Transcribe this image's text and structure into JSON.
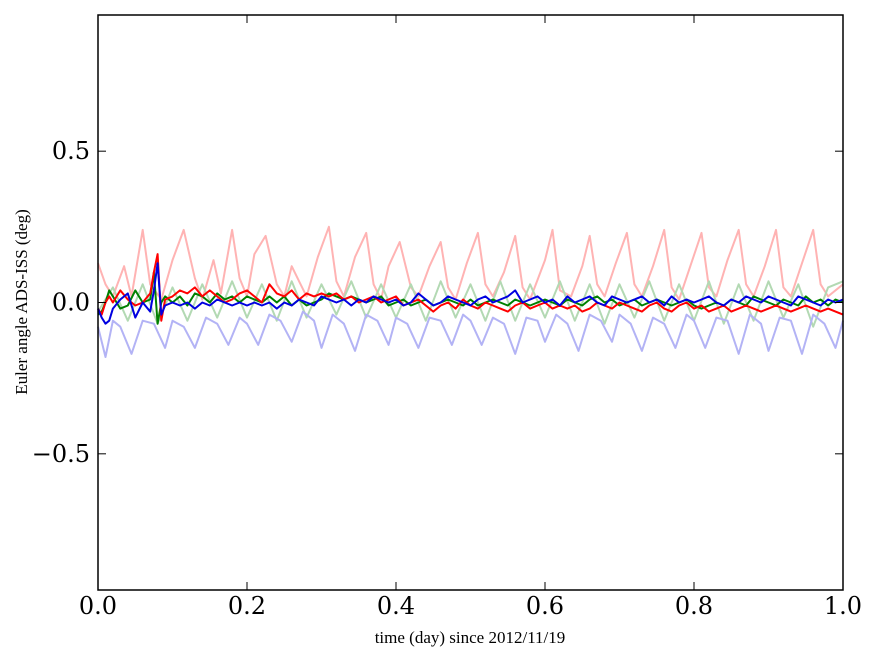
{
  "chart_data": {
    "type": "line",
    "title": "",
    "xlabel": "time (day) since 2012/11/19",
    "ylabel": "Euler angle ADS-ISS (deg)",
    "xlim": [
      0.0,
      1.0
    ],
    "ylim": [
      -0.95,
      0.95
    ],
    "xticks": [
      0.0,
      0.2,
      0.4,
      0.6,
      0.8,
      1.0
    ],
    "xtick_labels": [
      "0.0",
      "0.2",
      "0.4",
      "0.6",
      "0.8",
      "1.0"
    ],
    "yticks": [
      0.5,
      0.0,
      -0.5
    ],
    "ytick_labels": [
      "0.5",
      "0.0",
      "−0.5"
    ],
    "grid": false,
    "legend": "none",
    "series": [
      {
        "color": "#ffb3b3",
        "x": [
          0.0,
          0.01,
          0.02,
          0.035,
          0.045,
          0.06,
          0.07,
          0.085,
          0.1,
          0.115,
          0.13,
          0.14,
          0.155,
          0.165,
          0.18,
          0.19,
          0.2,
          0.21,
          0.225,
          0.24,
          0.25,
          0.26,
          0.27,
          0.28,
          0.295,
          0.31,
          0.32,
          0.33,
          0.345,
          0.36,
          0.37,
          0.38,
          0.39,
          0.405,
          0.42,
          0.43,
          0.445,
          0.46,
          0.47,
          0.48,
          0.495,
          0.51,
          0.52,
          0.53,
          0.545,
          0.56,
          0.57,
          0.58,
          0.6,
          0.61,
          0.62,
          0.635,
          0.65,
          0.66,
          0.67,
          0.68,
          0.695,
          0.71,
          0.72,
          0.73,
          0.745,
          0.76,
          0.77,
          0.78,
          0.795,
          0.81,
          0.82,
          0.83,
          0.845,
          0.86,
          0.87,
          0.88,
          0.895,
          0.91,
          0.92,
          0.93,
          0.945,
          0.96,
          0.97,
          0.98,
          1.0
        ],
        "y": [
          0.13,
          0.06,
          0.02,
          0.12,
          0.02,
          0.24,
          0.06,
          0.01,
          0.14,
          0.24,
          0.08,
          0.01,
          0.14,
          0.03,
          0.24,
          0.08,
          0.02,
          0.16,
          0.22,
          0.06,
          0.02,
          0.12,
          0.07,
          0.02,
          0.15,
          0.25,
          0.07,
          0.02,
          0.15,
          0.23,
          0.06,
          0.01,
          0.12,
          0.2,
          0.05,
          0.02,
          0.12,
          0.2,
          0.05,
          0.01,
          0.13,
          0.23,
          0.06,
          0.02,
          0.1,
          0.22,
          0.05,
          0.01,
          0.14,
          0.24,
          0.04,
          0.02,
          0.12,
          0.22,
          0.06,
          0.02,
          0.13,
          0.23,
          0.06,
          0.02,
          0.12,
          0.24,
          0.05,
          0.01,
          0.12,
          0.23,
          0.05,
          0.02,
          0.14,
          0.24,
          0.06,
          0.02,
          0.12,
          0.24,
          0.05,
          0.02,
          0.13,
          0.24,
          0.06,
          0.02,
          0.06
        ]
      },
      {
        "color": "#b3d9b3",
        "x": [
          0.0,
          0.02,
          0.04,
          0.06,
          0.08,
          0.1,
          0.12,
          0.14,
          0.16,
          0.18,
          0.2,
          0.22,
          0.24,
          0.26,
          0.28,
          0.3,
          0.32,
          0.34,
          0.36,
          0.38,
          0.4,
          0.42,
          0.44,
          0.46,
          0.48,
          0.5,
          0.52,
          0.54,
          0.56,
          0.58,
          0.6,
          0.62,
          0.64,
          0.66,
          0.68,
          0.7,
          0.72,
          0.74,
          0.76,
          0.78,
          0.8,
          0.82,
          0.84,
          0.86,
          0.88,
          0.9,
          0.92,
          0.94,
          0.96,
          0.98,
          1.0
        ],
        "y": [
          -0.03,
          0.05,
          -0.06,
          0.06,
          -0.07,
          0.05,
          -0.06,
          0.06,
          -0.05,
          0.07,
          -0.05,
          0.06,
          -0.06,
          0.07,
          -0.05,
          0.06,
          -0.04,
          0.07,
          -0.05,
          0.06,
          -0.05,
          0.06,
          -0.06,
          0.07,
          -0.05,
          0.06,
          -0.06,
          0.07,
          -0.06,
          0.06,
          -0.05,
          0.07,
          -0.06,
          0.06,
          -0.07,
          0.06,
          -0.05,
          0.07,
          -0.06,
          0.06,
          -0.06,
          0.07,
          -0.07,
          0.06,
          -0.06,
          0.07,
          -0.05,
          0.06,
          -0.08,
          0.05,
          0.07
        ]
      },
      {
        "color": "#b3b3f5",
        "x": [
          0.0,
          0.01,
          0.02,
          0.03,
          0.045,
          0.06,
          0.075,
          0.09,
          0.1,
          0.115,
          0.13,
          0.145,
          0.16,
          0.175,
          0.19,
          0.2,
          0.215,
          0.23,
          0.245,
          0.26,
          0.275,
          0.29,
          0.3,
          0.315,
          0.33,
          0.345,
          0.36,
          0.375,
          0.39,
          0.4,
          0.415,
          0.43,
          0.445,
          0.46,
          0.475,
          0.49,
          0.5,
          0.515,
          0.53,
          0.545,
          0.56,
          0.575,
          0.59,
          0.6,
          0.615,
          0.63,
          0.645,
          0.66,
          0.675,
          0.69,
          0.7,
          0.715,
          0.73,
          0.745,
          0.76,
          0.775,
          0.79,
          0.8,
          0.815,
          0.83,
          0.845,
          0.86,
          0.875,
          0.89,
          0.9,
          0.915,
          0.93,
          0.945,
          0.96,
          0.975,
          0.99,
          1.0
        ],
        "y": [
          -0.08,
          -0.18,
          -0.06,
          -0.08,
          -0.17,
          -0.06,
          -0.07,
          -0.15,
          -0.06,
          -0.08,
          -0.15,
          -0.05,
          -0.07,
          -0.14,
          -0.05,
          -0.07,
          -0.14,
          -0.04,
          -0.06,
          -0.13,
          -0.03,
          -0.06,
          -0.15,
          -0.04,
          -0.07,
          -0.16,
          -0.04,
          -0.06,
          -0.14,
          -0.05,
          -0.07,
          -0.15,
          -0.05,
          -0.06,
          -0.14,
          -0.04,
          -0.06,
          -0.14,
          -0.05,
          -0.07,
          -0.17,
          -0.05,
          -0.06,
          -0.13,
          -0.04,
          -0.07,
          -0.16,
          -0.04,
          -0.06,
          -0.13,
          -0.04,
          -0.07,
          -0.16,
          -0.05,
          -0.07,
          -0.15,
          -0.04,
          -0.06,
          -0.15,
          -0.05,
          -0.06,
          -0.17,
          -0.04,
          -0.07,
          -0.16,
          -0.05,
          -0.06,
          -0.17,
          -0.04,
          -0.07,
          -0.15,
          -0.06
        ]
      },
      {
        "color": "#008000",
        "x": [
          0.0,
          0.005,
          0.01,
          0.015,
          0.02,
          0.03,
          0.04,
          0.05,
          0.06,
          0.07,
          0.075,
          0.08,
          0.085,
          0.09,
          0.1,
          0.11,
          0.12,
          0.13,
          0.14,
          0.15,
          0.16,
          0.17,
          0.18,
          0.19,
          0.2,
          0.21,
          0.22,
          0.23,
          0.24,
          0.25,
          0.26,
          0.27,
          0.28,
          0.29,
          0.3,
          0.31,
          0.32,
          0.33,
          0.34,
          0.35,
          0.36,
          0.37,
          0.38,
          0.39,
          0.4,
          0.41,
          0.42,
          0.43,
          0.44,
          0.45,
          0.46,
          0.47,
          0.48,
          0.49,
          0.5,
          0.51,
          0.52,
          0.53,
          0.54,
          0.55,
          0.56,
          0.57,
          0.58,
          0.59,
          0.6,
          0.61,
          0.62,
          0.63,
          0.64,
          0.65,
          0.66,
          0.67,
          0.68,
          0.69,
          0.7,
          0.71,
          0.72,
          0.73,
          0.74,
          0.75,
          0.76,
          0.77,
          0.78,
          0.79,
          0.8,
          0.81,
          0.82,
          0.83,
          0.84,
          0.85,
          0.86,
          0.87,
          0.88,
          0.89,
          0.9,
          0.91,
          0.92,
          0.93,
          0.94,
          0.95,
          0.96,
          0.97,
          0.98,
          0.99,
          1.0
        ],
        "y": [
          -0.04,
          -0.03,
          0.0,
          0.04,
          0.02,
          -0.02,
          -0.01,
          0.04,
          0.0,
          0.01,
          0.1,
          -0.07,
          0.0,
          0.02,
          0.0,
          0.02,
          -0.01,
          0.03,
          0.02,
          0.0,
          0.03,
          0.01,
          0.02,
          0.0,
          0.02,
          0.01,
          0.0,
          0.02,
          0.0,
          0.02,
          -0.01,
          0.01,
          -0.01,
          0.0,
          0.01,
          0.03,
          0.02,
          0.01,
          0.02,
          0.01,
          0.0,
          0.01,
          0.02,
          -0.01,
          0.0,
          0.01,
          -0.01,
          0.0,
          0.01,
          -0.01,
          0.0,
          0.01,
          0.0,
          -0.01,
          0.01,
          -0.01,
          0.0,
          0.01,
          0.0,
          -0.01,
          0.01,
          0.0,
          -0.01,
          0.0,
          0.01,
          0.0,
          -0.01,
          0.01,
          0.0,
          -0.01,
          0.01,
          0.02,
          0.0,
          0.01,
          -0.01,
          0.0,
          0.01,
          -0.01,
          0.0,
          0.01,
          0.0,
          -0.01,
          0.0,
          0.01,
          -0.01,
          -0.02,
          -0.01,
          0.0,
          -0.01,
          0.01,
          0.0,
          -0.01,
          0.02,
          0.01,
          0.0,
          -0.01,
          0.01,
          0.0,
          -0.01,
          0.02,
          0.0,
          0.01,
          -0.01,
          0.01,
          0.0
        ]
      },
      {
        "color": "#ff0000",
        "x": [
          0.0,
          0.005,
          0.01,
          0.015,
          0.02,
          0.03,
          0.04,
          0.05,
          0.06,
          0.07,
          0.075,
          0.08,
          0.085,
          0.09,
          0.1,
          0.11,
          0.12,
          0.13,
          0.14,
          0.15,
          0.16,
          0.17,
          0.18,
          0.19,
          0.2,
          0.21,
          0.22,
          0.23,
          0.24,
          0.25,
          0.26,
          0.27,
          0.28,
          0.29,
          0.3,
          0.31,
          0.32,
          0.33,
          0.34,
          0.35,
          0.36,
          0.37,
          0.38,
          0.39,
          0.4,
          0.41,
          0.42,
          0.43,
          0.44,
          0.45,
          0.46,
          0.47,
          0.48,
          0.49,
          0.5,
          0.51,
          0.52,
          0.53,
          0.54,
          0.55,
          0.56,
          0.57,
          0.58,
          0.59,
          0.6,
          0.61,
          0.62,
          0.63,
          0.64,
          0.65,
          0.66,
          0.67,
          0.68,
          0.69,
          0.7,
          0.71,
          0.72,
          0.73,
          0.74,
          0.75,
          0.76,
          0.77,
          0.78,
          0.79,
          0.8,
          0.81,
          0.82,
          0.83,
          0.84,
          0.85,
          0.86,
          0.87,
          0.88,
          0.89,
          0.9,
          0.91,
          0.92,
          0.93,
          0.94,
          0.95,
          0.96,
          0.97,
          0.98,
          0.99,
          1.0
        ],
        "y": [
          -0.02,
          -0.04,
          0.0,
          0.02,
          0.0,
          0.04,
          0.01,
          -0.01,
          0.0,
          0.03,
          0.1,
          0.16,
          -0.06,
          0.01,
          0.02,
          0.04,
          0.03,
          0.05,
          0.02,
          0.04,
          0.02,
          0.0,
          0.01,
          0.03,
          0.04,
          0.02,
          0.0,
          0.06,
          0.03,
          0.02,
          0.04,
          0.01,
          0.03,
          0.02,
          0.03,
          0.02,
          0.03,
          0.01,
          0.02,
          0.0,
          0.01,
          0.02,
          0.0,
          0.01,
          0.02,
          -0.01,
          0.0,
          0.01,
          -0.01,
          -0.03,
          -0.01,
          0.0,
          -0.02,
          0.01,
          -0.01,
          -0.02,
          0.0,
          -0.01,
          -0.02,
          -0.03,
          -0.01,
          0.0,
          -0.02,
          -0.01,
          0.0,
          -0.02,
          -0.01,
          -0.02,
          -0.01,
          -0.03,
          -0.02,
          0.0,
          -0.01,
          -0.02,
          0.0,
          -0.01,
          -0.02,
          -0.03,
          -0.01,
          0.0,
          -0.02,
          -0.03,
          -0.01,
          0.0,
          -0.02,
          -0.01,
          -0.03,
          -0.02,
          -0.01,
          -0.03,
          -0.02,
          -0.01,
          -0.02,
          -0.03,
          -0.02,
          -0.01,
          -0.02,
          -0.03,
          -0.02,
          -0.01,
          -0.02,
          -0.03,
          -0.02,
          -0.03,
          -0.04
        ]
      },
      {
        "color": "#0000e0",
        "x": [
          0.0,
          0.005,
          0.01,
          0.015,
          0.02,
          0.03,
          0.04,
          0.05,
          0.06,
          0.07,
          0.075,
          0.08,
          0.085,
          0.09,
          0.1,
          0.11,
          0.12,
          0.13,
          0.14,
          0.15,
          0.16,
          0.17,
          0.18,
          0.19,
          0.2,
          0.21,
          0.22,
          0.23,
          0.24,
          0.25,
          0.26,
          0.27,
          0.28,
          0.29,
          0.3,
          0.31,
          0.32,
          0.33,
          0.34,
          0.35,
          0.36,
          0.37,
          0.38,
          0.39,
          0.4,
          0.41,
          0.42,
          0.43,
          0.44,
          0.45,
          0.46,
          0.47,
          0.48,
          0.49,
          0.5,
          0.51,
          0.52,
          0.53,
          0.54,
          0.55,
          0.56,
          0.57,
          0.58,
          0.59,
          0.6,
          0.61,
          0.62,
          0.63,
          0.64,
          0.65,
          0.66,
          0.67,
          0.68,
          0.69,
          0.7,
          0.71,
          0.72,
          0.73,
          0.74,
          0.75,
          0.76,
          0.77,
          0.78,
          0.79,
          0.8,
          0.81,
          0.82,
          0.83,
          0.84,
          0.85,
          0.86,
          0.87,
          0.88,
          0.89,
          0.9,
          0.91,
          0.92,
          0.93,
          0.94,
          0.95,
          0.96,
          0.97,
          0.98,
          0.99,
          1.0
        ],
        "y": [
          -0.02,
          -0.05,
          -0.07,
          -0.06,
          -0.02,
          0.01,
          0.03,
          -0.05,
          0.0,
          -0.03,
          0.04,
          0.13,
          -0.04,
          -0.01,
          0.0,
          -0.01,
          0.0,
          -0.02,
          0.0,
          -0.01,
          0.01,
          0.0,
          -0.01,
          0.0,
          -0.01,
          0.0,
          -0.01,
          0.0,
          -0.02,
          0.0,
          -0.01,
          0.01,
          0.0,
          -0.01,
          0.02,
          0.01,
          0.0,
          0.01,
          -0.01,
          0.01,
          0.0,
          0.02,
          0.01,
          0.0,
          0.01,
          -0.01,
          0.0,
          0.03,
          0.01,
          -0.01,
          0.0,
          0.02,
          0.01,
          0.0,
          -0.01,
          0.01,
          0.02,
          0.0,
          0.01,
          0.02,
          0.04,
          0.0,
          0.01,
          0.02,
          0.0,
          0.01,
          -0.01,
          0.02,
          0.0,
          0.01,
          0.02,
          0.0,
          -0.01,
          0.02,
          0.01,
          0.0,
          0.01,
          0.02,
          0.0,
          0.01,
          -0.01,
          0.02,
          0.0,
          0.01,
          0.0,
          0.01,
          0.02,
          0.0,
          -0.01,
          0.01,
          0.0,
          0.02,
          0.01,
          0.0,
          0.02,
          0.01,
          0.0,
          -0.01,
          0.02,
          0.01,
          0.0,
          -0.01,
          0.01,
          0.0,
          0.01
        ]
      }
    ]
  }
}
